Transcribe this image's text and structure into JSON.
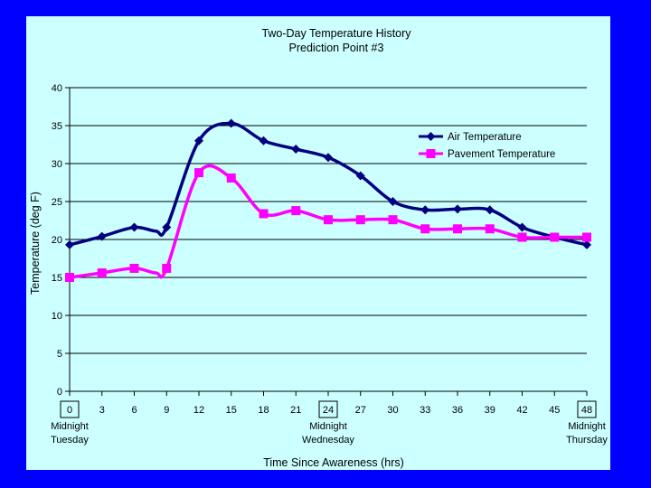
{
  "chart_data": {
    "type": "line",
    "title": "Two-Day Temperature History",
    "subtitle": "Prediction Point #3",
    "xlabel": "Time Since Awareness (hrs)",
    "ylabel": "Temperature (deg F)",
    "ylim": [
      0,
      40
    ],
    "yticks": [
      "0",
      "5",
      "10",
      "15",
      "20",
      "25",
      "30",
      "35",
      "40"
    ],
    "categories": [
      "0",
      "3",
      "6",
      "9",
      "12",
      "15",
      "18",
      "21",
      "24",
      "27",
      "30",
      "33",
      "36",
      "39",
      "42",
      "45",
      "48"
    ],
    "boxed_ticks": [
      "0",
      "24",
      "48"
    ],
    "day_labels": [
      {
        "line1": "Midnight",
        "line2": "Tuesday"
      },
      {
        "line1": "Midnight",
        "line2": "Wednesday"
      },
      {
        "line1": "Midnight",
        "line2": "Thursday"
      }
    ],
    "grid": "horizontal",
    "legend_position": "top-right",
    "series": [
      {
        "name": "Air Temperature",
        "color": "#000080",
        "marker": "diamond",
        "x": [
          0,
          3,
          6,
          8,
          9,
          12,
          15,
          18,
          21,
          24,
          27,
          30,
          33,
          36,
          39,
          42,
          45,
          48
        ],
        "values": [
          19.3,
          20.4,
          21.6,
          21.1,
          21.6,
          33.0,
          35.3,
          33.0,
          31.9,
          30.8,
          28.4,
          25.0,
          23.9,
          24.0,
          23.9,
          21.6,
          20.3,
          19.3
        ]
      },
      {
        "name": "Pavement Temperature",
        "color": "#ff00ff",
        "marker": "square",
        "x": [
          0,
          3,
          6,
          8,
          9,
          12,
          15,
          18,
          21,
          24,
          27,
          30,
          33,
          36,
          39,
          42,
          45,
          48
        ],
        "values": [
          15.0,
          15.6,
          16.2,
          15.6,
          16.2,
          28.8,
          28.1,
          23.4,
          23.8,
          22.6,
          22.6,
          22.6,
          21.4,
          21.4,
          21.4,
          20.3,
          20.3,
          20.3
        ]
      }
    ]
  }
}
